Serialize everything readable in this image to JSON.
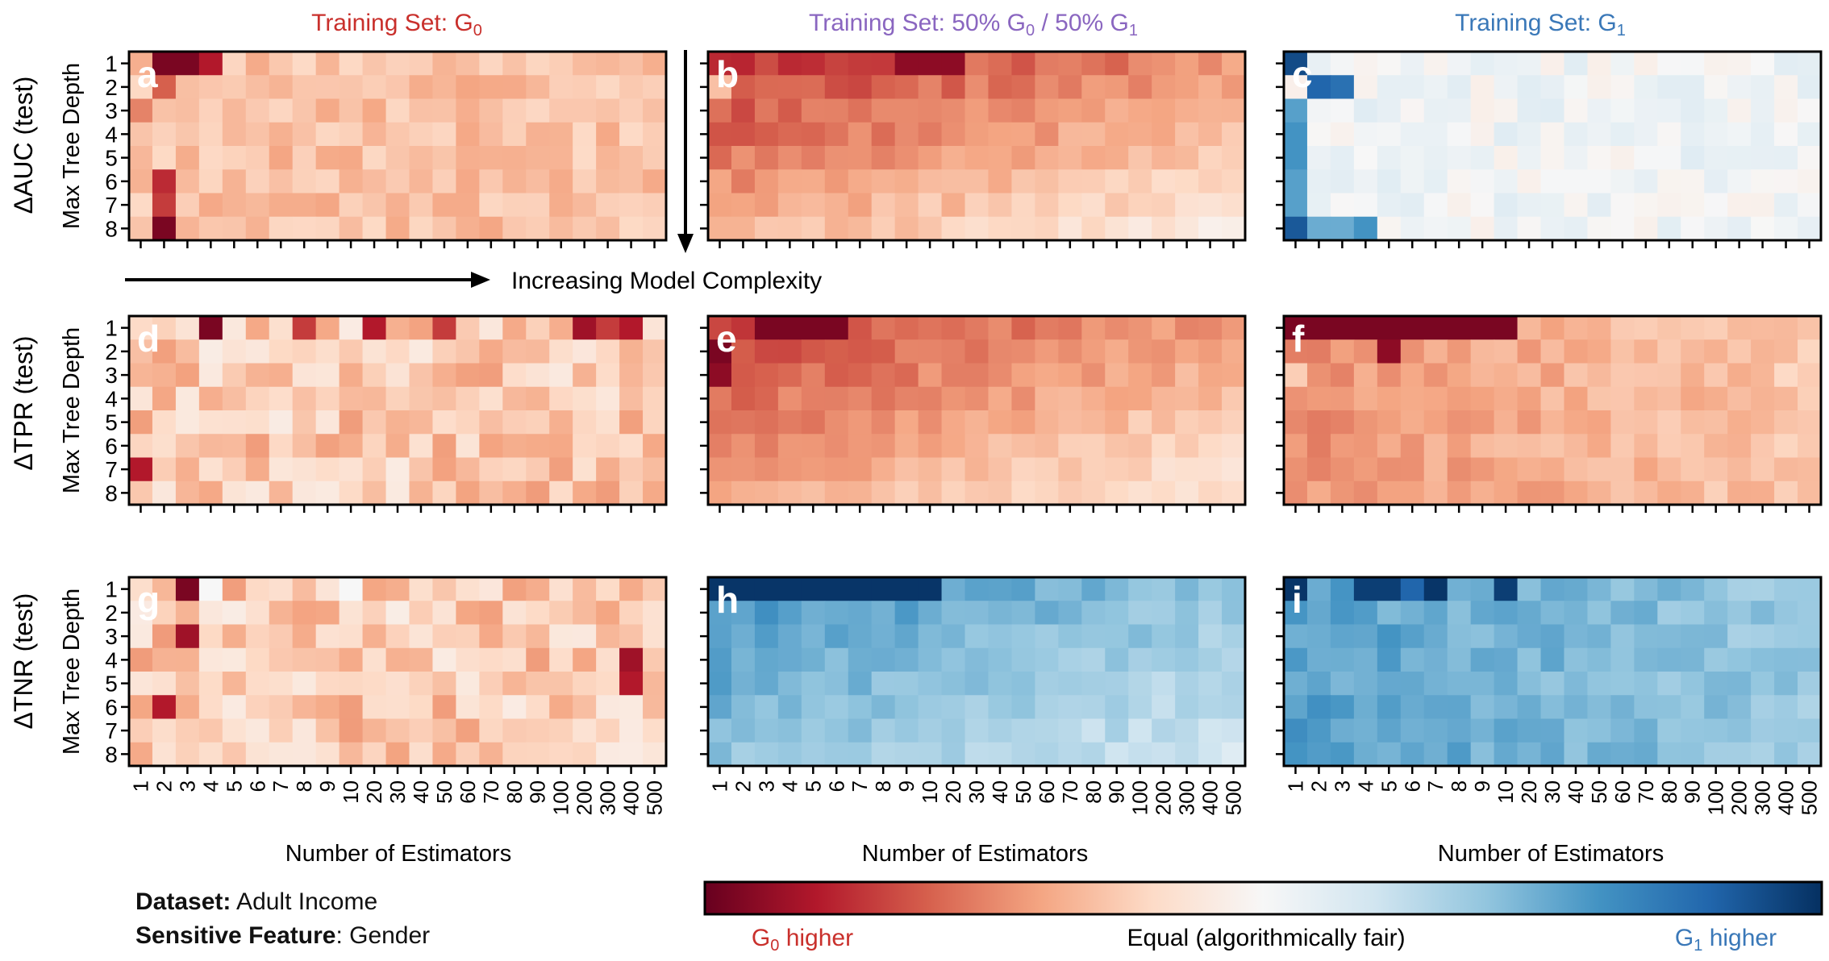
{
  "titles": {
    "col_g0": {
      "main": "Training Set: G",
      "sub": "0",
      "tail": ""
    },
    "col_mix": {
      "parts": [
        "Training Set: 50% G",
        "0",
        " / 50% G",
        "1"
      ]
    },
    "col_g1": {
      "main": "Training Set: G",
      "sub": "1",
      "tail": ""
    }
  },
  "row_labels": [
    "ΔAUC (test)",
    "ΔTPR (test)",
    "ΔTNR (test)"
  ],
  "y_axis_label": "Max Tree Depth",
  "x_axis_label": "Number of Estimators",
  "complexity_label": "Increasing Model Complexity",
  "panel_letters": [
    "a",
    "b",
    "c",
    "d",
    "e",
    "f",
    "g",
    "h",
    "i"
  ],
  "info": {
    "dataset_key": "Dataset:",
    "dataset_val": " Adult Income",
    "feature_key": "Sensitive Feature",
    "feature_val": ": Gender"
  },
  "colorbar": {
    "left": {
      "pre": "G",
      "sub": "0",
      "post": " higher"
    },
    "center": "Equal (algorithmically fair)",
    "right": {
      "pre": "G",
      "sub": "1",
      "post": " higher"
    },
    "range": [
      -1,
      1
    ],
    "colors": [
      "#67001f",
      "#b2182b",
      "#d6604d",
      "#f4a582",
      "#fddbc7",
      "#f7f7f7",
      "#d1e5f0",
      "#92c5de",
      "#4393c3",
      "#2166ac",
      "#053061"
    ]
  },
  "chart_data": {
    "type": "heatmap",
    "x": [
      "1",
      "2",
      "3",
      "4",
      "5",
      "6",
      "7",
      "8",
      "9",
      "10",
      "20",
      "30",
      "40",
      "50",
      "60",
      "70",
      "80",
      "90",
      "100",
      "200",
      "300",
      "400",
      "500"
    ],
    "y": [
      "1",
      "2",
      "3",
      "4",
      "5",
      "6",
      "7",
      "8"
    ],
    "value_scale": "signed disparity, -1 = G0 higher (red), +1 = G1 higher (blue), 0 = equal",
    "panels": [
      {
        "id": "a",
        "metric": "ΔAUC",
        "train": "G0",
        "base": -0.3,
        "row_slope": 0.0,
        "col_slope": 0.0,
        "strong_cells": [
          [
            0,
            1,
            -0.95
          ],
          [
            0,
            2,
            -0.95
          ],
          [
            0,
            3,
            -0.8
          ],
          [
            7,
            1,
            -0.95
          ],
          [
            5,
            1,
            -0.75
          ],
          [
            6,
            1,
            -0.7
          ],
          [
            2,
            0,
            -0.5
          ],
          [
            1,
            1,
            -0.6
          ]
        ],
        "noise": 0.1
      },
      {
        "id": "b",
        "metric": "ΔAUC",
        "train": "50/50",
        "base": -0.72,
        "row_slope": 0.05,
        "col_slope": 0.012,
        "strong_cells": [
          [
            1,
            0,
            -0.3
          ],
          [
            7,
            0,
            -0.35
          ],
          [
            7,
            1,
            -0.35
          ],
          [
            0,
            8,
            -0.9
          ],
          [
            0,
            9,
            -0.9
          ],
          [
            0,
            10,
            -0.9
          ]
        ],
        "noise": 0.08
      },
      {
        "id": "c",
        "metric": "ΔAUC",
        "train": "G1",
        "base": 0.03,
        "row_slope": 0.0,
        "col_slope": 0.0,
        "strong_cells": [
          [
            0,
            0,
            0.9
          ],
          [
            1,
            1,
            0.8
          ],
          [
            1,
            2,
            0.75
          ],
          [
            7,
            0,
            0.85
          ],
          [
            2,
            0,
            0.55
          ],
          [
            3,
            0,
            0.6
          ],
          [
            4,
            0,
            0.6
          ],
          [
            5,
            0,
            0.55
          ],
          [
            6,
            0,
            0.55
          ],
          [
            7,
            3,
            0.6
          ],
          [
            7,
            2,
            0.5
          ],
          [
            7,
            1,
            0.5
          ]
        ],
        "noise": 0.09
      },
      {
        "id": "d",
        "metric": "ΔTPR",
        "train": "G0",
        "base": -0.25,
        "row_slope": 0.0,
        "col_slope": 0.0,
        "strong_cells": [
          [
            0,
            3,
            -0.95
          ],
          [
            0,
            10,
            -0.8
          ],
          [
            0,
            19,
            -0.85
          ],
          [
            0,
            21,
            -0.8
          ],
          [
            6,
            0,
            -0.8
          ],
          [
            0,
            7,
            -0.7
          ],
          [
            0,
            13,
            -0.7
          ],
          [
            0,
            20,
            -0.7
          ]
        ],
        "noise": 0.18
      },
      {
        "id": "e",
        "metric": "ΔTPR",
        "train": "50/50",
        "base": -0.68,
        "row_slope": 0.04,
        "col_slope": 0.012,
        "strong_cells": [
          [
            0,
            2,
            -0.95
          ],
          [
            0,
            3,
            -0.95
          ],
          [
            0,
            4,
            -0.95
          ],
          [
            0,
            5,
            -0.95
          ],
          [
            1,
            0,
            -0.95
          ],
          [
            2,
            0,
            -0.9
          ]
        ],
        "noise": 0.07
      },
      {
        "id": "f",
        "metric": "ΔTPR",
        "train": "G1",
        "base": -0.45,
        "row_slope": 0.0,
        "col_slope": 0.008,
        "strong_cells": [
          [
            0,
            0,
            -0.95
          ],
          [
            0,
            1,
            -0.95
          ],
          [
            0,
            2,
            -0.95
          ],
          [
            0,
            3,
            -0.95
          ],
          [
            0,
            4,
            -0.95
          ],
          [
            0,
            5,
            -0.95
          ],
          [
            0,
            6,
            -0.95
          ],
          [
            0,
            7,
            -0.95
          ],
          [
            0,
            8,
            -0.95
          ],
          [
            0,
            9,
            -0.95
          ],
          [
            1,
            4,
            -0.9
          ],
          [
            2,
            0,
            -0.25
          ]
        ],
        "noise": 0.08
      },
      {
        "id": "g",
        "metric": "ΔTNR",
        "train": "G0",
        "base": -0.25,
        "row_slope": 0.0,
        "col_slope": 0.0,
        "strong_cells": [
          [
            0,
            2,
            -0.95
          ],
          [
            2,
            2,
            -0.85
          ],
          [
            5,
            1,
            -0.8
          ],
          [
            3,
            21,
            -0.85
          ],
          [
            4,
            21,
            -0.8
          ],
          [
            0,
            3,
            0.0
          ],
          [
            0,
            9,
            0.0
          ]
        ],
        "noise": 0.18
      },
      {
        "id": "h",
        "metric": "ΔTNR",
        "train": "50/50",
        "base": 0.62,
        "row_slope": -0.03,
        "col_slope": -0.01,
        "strong_cells": [
          [
            0,
            0,
            0.98
          ],
          [
            0,
            1,
            0.98
          ],
          [
            0,
            2,
            0.98
          ],
          [
            0,
            3,
            0.98
          ],
          [
            0,
            4,
            0.98
          ],
          [
            0,
            5,
            0.98
          ],
          [
            0,
            6,
            0.98
          ],
          [
            0,
            7,
            0.98
          ],
          [
            0,
            8,
            0.98
          ],
          [
            0,
            9,
            0.98
          ]
        ],
        "noise": 0.07
      },
      {
        "id": "i",
        "metric": "ΔTNR",
        "train": "G1",
        "base": 0.55,
        "row_slope": 0.0,
        "col_slope": -0.008,
        "strong_cells": [
          [
            0,
            0,
            0.98
          ],
          [
            0,
            3,
            0.95
          ],
          [
            0,
            4,
            0.95
          ],
          [
            0,
            6,
            0.98
          ],
          [
            0,
            9,
            0.95
          ],
          [
            0,
            5,
            0.8
          ]
        ],
        "noise": 0.08
      }
    ]
  }
}
